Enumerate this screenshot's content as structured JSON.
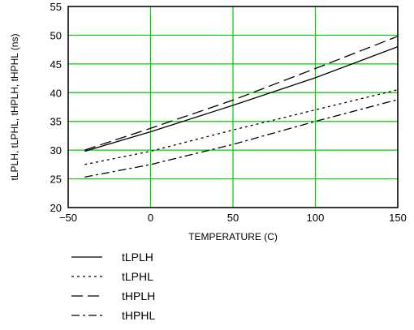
{
  "chart_data": {
    "type": "line",
    "title": "",
    "xlabel": "TEMPERATURE (C)",
    "ylabel": "tLPLH, tLPHL, tHPLH, tHPHL (ns)",
    "xlim": [
      -50,
      150
    ],
    "ylim": [
      20,
      55
    ],
    "xticks": [
      -50,
      0,
      50,
      100,
      150
    ],
    "yticks": [
      20,
      25,
      30,
      35,
      40,
      45,
      50,
      55
    ],
    "x_tick_labels": [
      "−50",
      "0",
      "50",
      "100",
      "150"
    ],
    "y_tick_labels": [
      "20",
      "25",
      "30",
      "35",
      "40",
      "45",
      "50",
      "55"
    ],
    "grid": true,
    "grid_color": "#00cc00",
    "legend_position": "below",
    "series": [
      {
        "name": "tLPLH",
        "dash": "solid",
        "x": [
          -40,
          0,
          50,
          100,
          150
        ],
        "y": [
          29.8,
          33.2,
          37.8,
          42.6,
          48.0
        ]
      },
      {
        "name": "tLPHL",
        "dash": "dotted",
        "x": [
          -40,
          0,
          50,
          100,
          150
        ],
        "y": [
          27.5,
          29.8,
          33.5,
          37.0,
          40.5
        ]
      },
      {
        "name": "tHPLH",
        "dash": "dashed",
        "x": [
          -40,
          0,
          50,
          100,
          150
        ],
        "y": [
          30.0,
          33.8,
          38.7,
          44.2,
          49.8
        ]
      },
      {
        "name": "tHPHL",
        "dash": "dashdot",
        "x": [
          -40,
          0,
          50,
          100,
          150
        ],
        "y": [
          25.3,
          27.5,
          31.0,
          35.0,
          38.8
        ]
      }
    ]
  }
}
